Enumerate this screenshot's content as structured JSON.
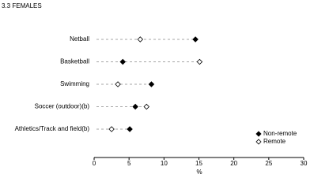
{
  "chart_data": {
    "type": "dot",
    "title": "3.3 FEMALES",
    "categories": [
      "Netball",
      "Basketball",
      "Swimming",
      "Soccer (outdoor)(b)",
      "Athletics/Track and field(b)"
    ],
    "series": [
      {
        "name": "Non-remote",
        "color": "#000000",
        "filled": true,
        "values": [
          14.5,
          4.1,
          8.2,
          5.9,
          5.1
        ]
      },
      {
        "name": "Remote",
        "color": "#000000",
        "filled": false,
        "values": [
          6.6,
          15.1,
          3.4,
          7.5,
          2.5
        ]
      }
    ],
    "xlabel": "%",
    "xlim": [
      0,
      30
    ],
    "xticks": [
      0,
      5,
      10,
      15,
      20,
      25,
      30
    ],
    "legend": "lower right"
  }
}
